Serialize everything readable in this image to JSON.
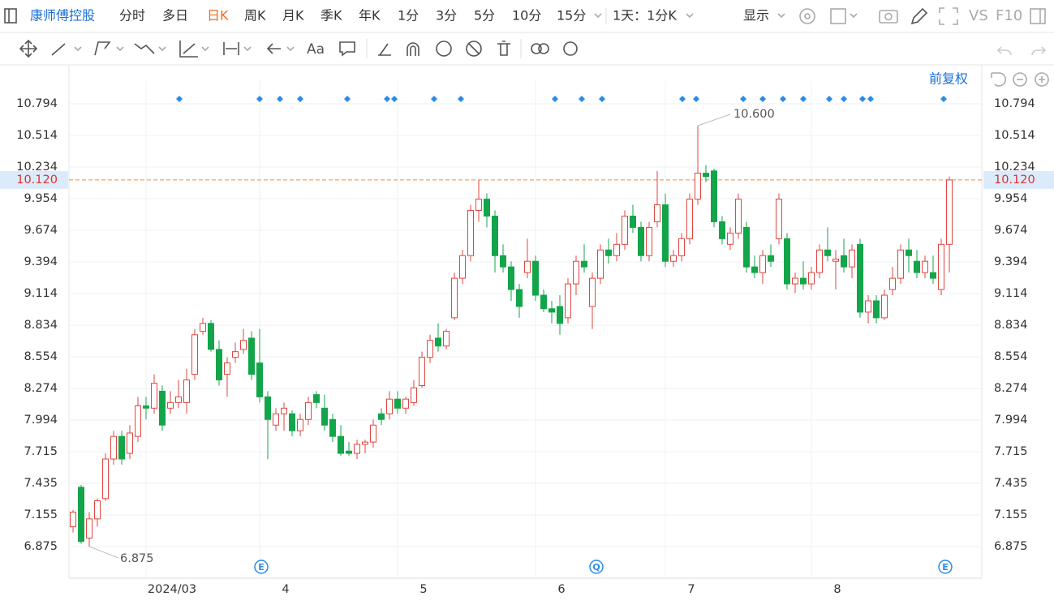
{
  "toolbar": {
    "stock": "康师傅控股",
    "periods": [
      "分时",
      "多日",
      "日K",
      "周K",
      "月K",
      "季K",
      "年K",
      "1分",
      "3分",
      "5分",
      "10分",
      "15分"
    ],
    "active": 2,
    "range": "1天：1分K",
    "display": "显示",
    "vs": "VS",
    "f10": "F10",
    "aa": "Aa"
  },
  "chart_data": {
    "type": "candlestick",
    "adjust": "前复权",
    "categories": [
      null,
      null,
      null,
      null,
      null,
      null,
      null,
      null,
      null,
      null,
      null,
      null,
      "2024/03",
      null,
      null,
      null,
      null,
      null,
      null,
      null,
      null,
      null,
      null,
      null,
      null,
      null,
      "4",
      null,
      null,
      null,
      null,
      null,
      null,
      null,
      null,
      null,
      null,
      null,
      null,
      null,
      null,
      null,
      null,
      "5",
      null,
      null,
      null,
      null,
      null,
      null,
      null,
      null,
      null,
      null,
      null,
      null,
      null,
      null,
      null,
      null,
      "6",
      null,
      null,
      null,
      null,
      null,
      null,
      null,
      null,
      null,
      null,
      null,
      null,
      null,
      null,
      null,
      "7",
      null,
      null,
      null,
      null,
      null,
      null,
      null,
      null,
      null,
      null,
      null,
      null,
      null,
      null,
      null,
      null,
      null,
      "8",
      null,
      null,
      null,
      null,
      null,
      null,
      null,
      null,
      null,
      null,
      null,
      null,
      null,
      null
    ],
    "ohlc": [
      [
        7.05,
        7.2,
        7.0,
        7.18
      ],
      [
        7.4,
        7.42,
        6.9,
        6.92
      ],
      [
        6.95,
        7.18,
        6.875,
        7.12
      ],
      [
        7.12,
        7.3,
        7.05,
        7.28
      ],
      [
        7.3,
        7.7,
        7.28,
        7.65
      ],
      [
        7.65,
        7.9,
        7.6,
        7.85
      ],
      [
        7.85,
        7.9,
        7.6,
        7.65
      ],
      [
        7.7,
        7.95,
        7.65,
        7.88
      ],
      [
        7.85,
        8.2,
        7.8,
        8.12
      ],
      [
        8.12,
        8.2,
        8.0,
        8.1
      ],
      [
        8.1,
        8.4,
        8.05,
        8.32
      ],
      [
        8.25,
        8.3,
        7.9,
        7.95
      ],
      [
        8.1,
        8.25,
        8.05,
        8.15
      ],
      [
        8.15,
        8.35,
        8.1,
        8.2
      ],
      [
        8.15,
        8.45,
        8.05,
        8.35
      ],
      [
        8.4,
        8.8,
        8.35,
        8.75
      ],
      [
        8.78,
        8.9,
        8.75,
        8.85
      ],
      [
        8.85,
        8.88,
        8.6,
        8.62
      ],
      [
        8.62,
        8.7,
        8.3,
        8.35
      ],
      [
        8.4,
        8.55,
        8.2,
        8.5
      ],
      [
        8.55,
        8.68,
        8.5,
        8.6
      ],
      [
        8.62,
        8.8,
        8.58,
        8.7
      ],
      [
        8.72,
        8.78,
        8.35,
        8.4
      ],
      [
        8.5,
        8.8,
        8.15,
        8.2
      ],
      [
        8.2,
        8.25,
        7.65,
        8.0
      ],
      [
        7.95,
        8.1,
        7.9,
        8.05
      ],
      [
        8.05,
        8.15,
        7.9,
        8.1
      ],
      [
        8.05,
        8.08,
        7.85,
        7.9
      ],
      [
        7.9,
        8.05,
        7.85,
        8.0
      ],
      [
        8.0,
        8.2,
        7.95,
        8.15
      ],
      [
        8.22,
        8.25,
        8.1,
        8.15
      ],
      [
        8.1,
        8.22,
        7.9,
        7.95
      ],
      [
        8.0,
        8.05,
        7.8,
        7.85
      ],
      [
        7.85,
        7.95,
        7.68,
        7.7
      ],
      [
        7.72,
        7.8,
        7.68,
        7.7
      ],
      [
        7.7,
        7.82,
        7.65,
        7.78
      ],
      [
        7.78,
        7.82,
        7.7,
        7.8
      ],
      [
        7.8,
        8.0,
        7.75,
        7.95
      ],
      [
        8.05,
        8.1,
        7.95,
        8.0
      ],
      [
        8.05,
        8.25,
        8.0,
        8.18
      ],
      [
        8.18,
        8.25,
        8.05,
        8.1
      ],
      [
        8.1,
        8.2,
        8.05,
        8.18
      ],
      [
        8.15,
        8.35,
        8.12,
        8.28
      ],
      [
        8.3,
        8.6,
        8.28,
        8.55
      ],
      [
        8.55,
        8.75,
        8.5,
        8.7
      ],
      [
        8.72,
        8.85,
        8.6,
        8.65
      ],
      [
        8.65,
        8.8,
        8.62,
        8.78
      ],
      [
        8.9,
        9.3,
        8.88,
        9.25
      ],
      [
        9.25,
        9.5,
        9.2,
        9.45
      ],
      [
        9.45,
        9.9,
        9.4,
        9.85
      ],
      [
        9.85,
        10.12,
        9.75,
        9.95
      ],
      [
        9.95,
        10.0,
        9.7,
        9.8
      ],
      [
        9.8,
        9.85,
        9.3,
        9.45
      ],
      [
        9.45,
        9.55,
        9.3,
        9.35
      ],
      [
        9.35,
        9.4,
        9.05,
        9.15
      ],
      [
        9.15,
        9.2,
        8.9,
        9.0
      ],
      [
        9.3,
        9.6,
        9.25,
        9.4
      ],
      [
        9.4,
        9.45,
        9.05,
        9.1
      ],
      [
        9.1,
        9.15,
        8.95,
        8.98
      ],
      [
        8.98,
        9.05,
        8.85,
        8.95
      ],
      [
        9.0,
        9.1,
        8.75,
        8.85
      ],
      [
        8.9,
        9.25,
        8.85,
        9.2
      ],
      [
        9.2,
        9.45,
        9.1,
        9.4
      ],
      [
        9.4,
        9.55,
        9.3,
        9.35
      ],
      [
        9.0,
        9.3,
        8.8,
        9.25
      ],
      [
        9.25,
        9.55,
        9.2,
        9.5
      ],
      [
        9.5,
        9.6,
        9.38,
        9.45
      ],
      [
        9.45,
        9.65,
        9.4,
        9.55
      ],
      [
        9.55,
        9.85,
        9.5,
        9.8
      ],
      [
        9.8,
        9.9,
        9.65,
        9.7
      ],
      [
        9.7,
        9.75,
        9.4,
        9.45
      ],
      [
        9.45,
        9.75,
        9.4,
        9.7
      ],
      [
        9.75,
        10.2,
        9.7,
        9.9
      ],
      [
        9.9,
        10.0,
        9.35,
        9.4
      ],
      [
        9.4,
        9.5,
        9.35,
        9.45
      ],
      [
        9.45,
        9.65,
        9.4,
        9.6
      ],
      [
        9.6,
        10.0,
        9.55,
        9.95
      ],
      [
        9.95,
        10.6,
        9.9,
        10.18
      ],
      [
        10.18,
        10.25,
        10.1,
        10.15
      ],
      [
        10.2,
        10.22,
        9.7,
        9.75
      ],
      [
        9.75,
        9.8,
        9.55,
        9.6
      ],
      [
        9.55,
        9.7,
        9.5,
        9.65
      ],
      [
        9.65,
        10.0,
        9.6,
        9.95
      ],
      [
        9.7,
        9.75,
        9.3,
        9.35
      ],
      [
        9.35,
        9.45,
        9.25,
        9.3
      ],
      [
        9.3,
        9.5,
        9.2,
        9.45
      ],
      [
        9.45,
        9.55,
        9.35,
        9.4
      ],
      [
        9.6,
        10.0,
        9.55,
        9.95
      ],
      [
        9.6,
        9.65,
        9.15,
        9.2
      ],
      [
        9.2,
        9.3,
        9.12,
        9.25
      ],
      [
        9.25,
        9.4,
        9.15,
        9.2
      ],
      [
        9.2,
        9.35,
        9.15,
        9.3
      ],
      [
        9.3,
        9.55,
        9.25,
        9.5
      ],
      [
        9.5,
        9.7,
        9.4,
        9.45
      ],
      [
        9.4,
        9.5,
        9.15,
        9.42
      ],
      [
        9.45,
        9.6,
        9.3,
        9.35
      ],
      [
        9.35,
        9.55,
        9.25,
        9.5
      ],
      [
        9.55,
        9.6,
        8.9,
        8.95
      ],
      [
        8.95,
        9.1,
        8.85,
        9.05
      ],
      [
        9.05,
        9.1,
        8.85,
        8.9
      ],
      [
        8.9,
        9.15,
        8.88,
        9.1
      ],
      [
        9.15,
        9.35,
        9.1,
        9.25
      ],
      [
        9.25,
        9.55,
        9.2,
        9.5
      ],
      [
        9.5,
        9.6,
        9.3,
        9.45
      ],
      [
        9.4,
        9.5,
        9.25,
        9.3
      ],
      [
        9.3,
        9.45,
        9.25,
        9.4
      ],
      [
        9.3,
        9.45,
        9.2,
        9.25
      ],
      [
        9.15,
        9.6,
        9.1,
        9.55
      ],
      [
        9.55,
        10.15,
        9.3,
        10.12
      ]
    ],
    "ylim": [
      6.595,
      10.995
    ],
    "yticks": [
      6.875,
      7.155,
      7.435,
      7.715,
      7.994,
      8.274,
      8.554,
      8.834,
      9.114,
      9.394,
      9.674,
      9.954,
      10.234,
      10.514,
      10.794
    ],
    "grid": true,
    "up_color": "#e2463f",
    "down_color": "#13a54a",
    "last": {
      "value": 10.12,
      "label": "10.120"
    },
    "high_label": {
      "value": 10.6,
      "label": "10.600"
    },
    "low_label": 6.875,
    "badges": [
      "E",
      "Q",
      "E"
    ]
  }
}
